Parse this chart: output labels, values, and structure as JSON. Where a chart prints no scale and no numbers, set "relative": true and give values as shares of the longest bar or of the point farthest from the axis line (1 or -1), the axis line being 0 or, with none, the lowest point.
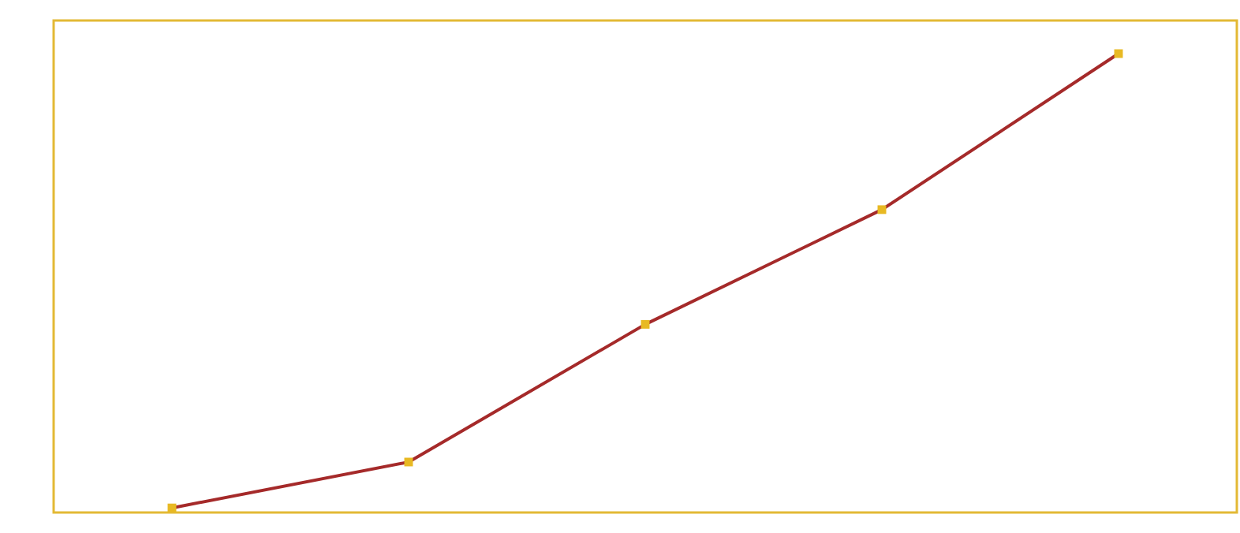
{
  "chart_data": {
    "type": "line",
    "relative": true,
    "categories": [
      null,
      null,
      null,
      null,
      null
    ],
    "marker": "square",
    "series": [
      {
        "color": "#a52a2a",
        "values": [
          0.01,
          0.11,
          0.41,
          0.66,
          1
        ]
      }
    ]
  }
}
